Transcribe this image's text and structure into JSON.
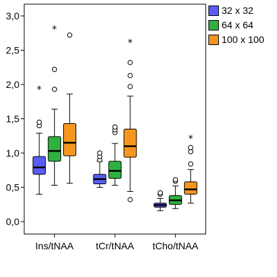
{
  "chart_data": {
    "type": "boxplot",
    "title": "",
    "xlabel": "",
    "ylabel": "",
    "ylim": [
      -0.15,
      3.1
    ],
    "grid": false,
    "legend_position": "top-right",
    "y_ticks": [
      {
        "value": 0.0,
        "label": "0,0"
      },
      {
        "value": 0.5,
        "label": "0,5"
      },
      {
        "value": 1.0,
        "label": "1,0"
      },
      {
        "value": 1.5,
        "label": "1,5"
      },
      {
        "value": 2.0,
        "label": "2,0"
      },
      {
        "value": 2.5,
        "label": "2,5"
      },
      {
        "value": 3.0,
        "label": "3,0"
      }
    ],
    "categories": [
      "Ins/tNAA",
      "tCr/tNAA",
      "tCho/tNAA"
    ],
    "series": [
      {
        "name": "32 x 32",
        "color": "#5a5cf6",
        "boxes": [
          {
            "whisker_low": 0.4,
            "q1": 0.69,
            "median": 0.79,
            "q3": 0.95,
            "whisker_high": 1.29,
            "outliers": [
              1.4,
              1.45
            ],
            "extremes": [
              1.94
            ]
          },
          {
            "whisker_low": 0.5,
            "q1": 0.55,
            "median": 0.62,
            "q3": 0.69,
            "whisker_high": 0.88,
            "outliers": [
              0.9,
              0.95,
              1.0
            ],
            "extremes": []
          },
          {
            "whisker_low": 0.16,
            "q1": 0.21,
            "median": 0.24,
            "q3": 0.27,
            "whisker_high": 0.34,
            "outliers": [
              0.4,
              0.42
            ],
            "extremes": []
          }
        ]
      },
      {
        "name": "64 x 64",
        "color": "#2fb140",
        "boxes": [
          {
            "whisker_low": 0.53,
            "q1": 0.88,
            "median": 1.03,
            "q3": 1.24,
            "whisker_high": 1.64,
            "outliers": [
              1.93,
              2.22
            ],
            "extremes": [
              2.82
            ]
          },
          {
            "whisker_low": 0.53,
            "q1": 0.63,
            "median": 0.74,
            "q3": 0.88,
            "whisker_high": 1.14,
            "outliers": [
              1.3,
              1.34,
              1.38
            ],
            "extremes": []
          },
          {
            "whisker_low": 0.19,
            "q1": 0.25,
            "median": 0.31,
            "q3": 0.38,
            "whisker_high": 0.52,
            "outliers": [
              0.59,
              0.61
            ],
            "extremes": []
          }
        ]
      },
      {
        "name": "100 x 100",
        "color": "#f7961e",
        "boxes": [
          {
            "whisker_low": 0.56,
            "q1": 0.96,
            "median": 1.15,
            "q3": 1.43,
            "whisker_high": 1.86,
            "outliers": [
              2.72
            ],
            "extremes": []
          },
          {
            "whisker_low": 0.44,
            "q1": 0.94,
            "median": 1.1,
            "q3": 1.35,
            "whisker_high": 1.83,
            "outliers": [
              0.32,
              1.97,
              2.13,
              2.32
            ],
            "extremes": [
              2.62
            ]
          },
          {
            "whisker_low": 0.27,
            "q1": 0.4,
            "median": 0.47,
            "q3": 0.58,
            "whisker_high": 0.76,
            "outliers": [
              0.84,
              1.02,
              1.08
            ],
            "extremes": [
              1.22
            ]
          }
        ]
      }
    ]
  }
}
